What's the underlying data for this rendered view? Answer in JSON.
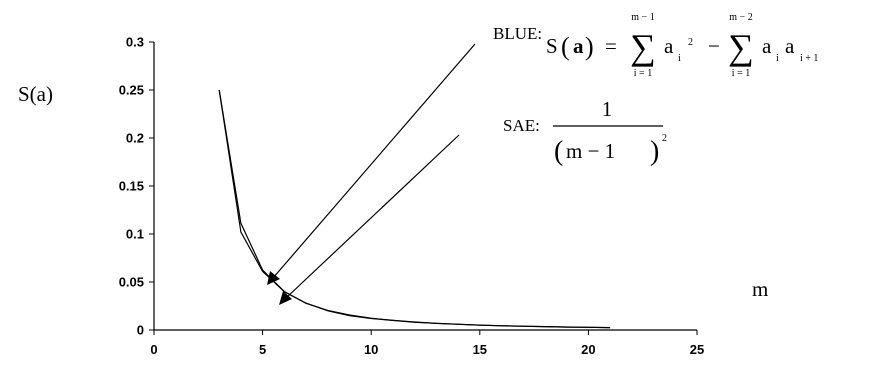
{
  "chart_data": {
    "type": "line",
    "ylabel": "S(a)",
    "xlabel": "m",
    "xlim": [
      0,
      25
    ],
    "ylim": [
      0,
      0.3
    ],
    "xticks": [
      "0",
      "5",
      "10",
      "15",
      "20",
      "25"
    ],
    "yticks": [
      "0",
      "0.05",
      "0.1",
      "0.15",
      "0.2",
      "0.25",
      "0.3"
    ],
    "grid": false,
    "series": [
      {
        "name": "BLUE",
        "x": [
          3,
          4,
          5,
          6,
          7,
          8,
          9,
          10,
          11,
          12,
          13,
          14,
          15,
          16,
          17,
          18,
          19,
          20,
          21
        ],
        "y": [
          0.25,
          0.102,
          0.061,
          0.04,
          0.028,
          0.02,
          0.015,
          0.012,
          0.01,
          0.008,
          0.007,
          0.006,
          0.005,
          0.0045,
          0.004,
          0.0035,
          0.003,
          0.0028,
          0.0025
        ]
      },
      {
        "name": "SAE",
        "x": [
          3,
          4,
          5,
          6,
          7,
          8,
          9,
          10,
          11,
          12,
          13,
          14,
          15,
          16,
          17,
          18,
          19,
          20,
          21
        ],
        "y": [
          0.25,
          0.1111,
          0.0625,
          0.04,
          0.0278,
          0.0204,
          0.0156,
          0.0123,
          0.01,
          0.0083,
          0.0069,
          0.0059,
          0.0051,
          0.0044,
          0.0039,
          0.0035,
          0.0031,
          0.0028,
          0.0025
        ]
      }
    ],
    "annotations": {
      "blue_label": "BLUE:",
      "blue_lhs_S": "S",
      "blue_lhs_a": "a",
      "blue_eq": "=",
      "blue_sum1_top": "m − 1",
      "blue_sum1_bottom": "i = 1",
      "blue_sum1_term": "a",
      "blue_sum1_sub": "i",
      "blue_sum1_sup": "2",
      "blue_minus": "−",
      "blue_sum2_top": "m − 2",
      "blue_sum2_bottom": "i = 1",
      "blue_sum2_term": "a",
      "blue_sum2_sub_i": "i",
      "blue_sum2_sub_ip1": "i + 1",
      "sae_label": "SAE:",
      "sae_numerator": "1",
      "sae_denominator": "m − 1",
      "sae_exponent": "2"
    }
  }
}
